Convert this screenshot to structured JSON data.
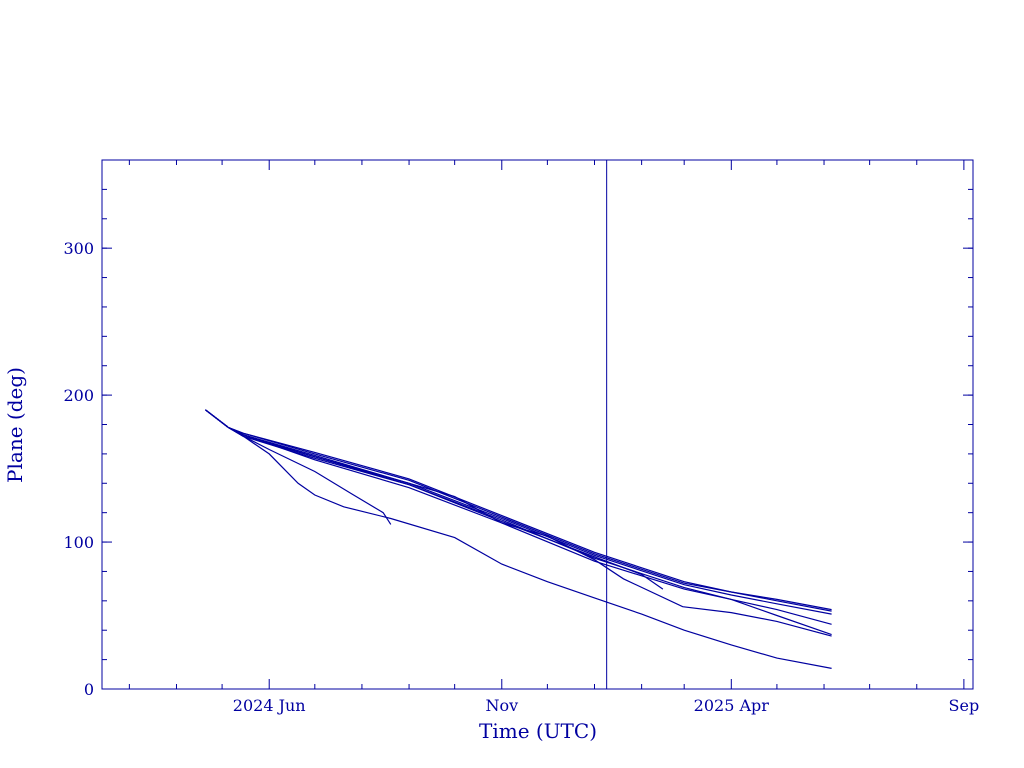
{
  "chart_data": {
    "type": "line",
    "title": "",
    "xlabel": "Time (UTC)",
    "ylabel": "Plane (deg)",
    "xlim": [
      "2024-02-12",
      "2025-09-07"
    ],
    "ylim": [
      0,
      360
    ],
    "x_ticks": [
      {
        "date": "2024-06-01",
        "label": "2024 Jun"
      },
      {
        "date": "2024-11-01",
        "label": "Nov"
      },
      {
        "date": "2025-04-01",
        "label": "2025 Apr"
      },
      {
        "date": "2025-09-01",
        "label": "Sep"
      }
    ],
    "x_minor_ticks": [
      "2024-03-01",
      "2024-04-01",
      "2024-05-01",
      "2024-07-01",
      "2024-08-01",
      "2024-09-01",
      "2024-10-01",
      "2024-12-01",
      "2025-01-01",
      "2025-02-01",
      "2025-03-01",
      "2025-05-01",
      "2025-06-01",
      "2025-07-01",
      "2025-08-01"
    ],
    "y_ticks": [
      0,
      100,
      200,
      300
    ],
    "y_minor_step": 20,
    "vertical_marker": "2025-01-09",
    "grid": false,
    "series": [
      {
        "points": [
          [
            "2024-04-20",
            190
          ],
          [
            "2024-05-05",
            178
          ],
          [
            "2024-05-15",
            174
          ],
          [
            "2024-07-01",
            161
          ],
          [
            "2024-09-01",
            143
          ],
          [
            "2024-11-01",
            118
          ],
          [
            "2025-01-01",
            93
          ],
          [
            "2025-03-01",
            73
          ],
          [
            "2025-04-01",
            66
          ],
          [
            "2025-05-01",
            61
          ],
          [
            "2025-06-06",
            54
          ]
        ]
      },
      {
        "points": [
          [
            "2024-04-20",
            190
          ],
          [
            "2024-05-05",
            178
          ],
          [
            "2024-05-15",
            174
          ],
          [
            "2024-07-01",
            160
          ],
          [
            "2024-09-01",
            142
          ],
          [
            "2024-11-01",
            117
          ],
          [
            "2025-01-01",
            92
          ],
          [
            "2025-03-01",
            72
          ],
          [
            "2025-04-01",
            66
          ],
          [
            "2025-05-01",
            60
          ],
          [
            "2025-06-06",
            53
          ]
        ]
      },
      {
        "points": [
          [
            "2024-04-20",
            190
          ],
          [
            "2024-05-05",
            178
          ],
          [
            "2024-05-15",
            173
          ],
          [
            "2024-07-01",
            159
          ],
          [
            "2024-09-01",
            140
          ],
          [
            "2024-11-01",
            116
          ],
          [
            "2025-01-01",
            91
          ],
          [
            "2025-03-01",
            71
          ],
          [
            "2025-04-01",
            64
          ],
          [
            "2025-05-01",
            58
          ],
          [
            "2025-06-06",
            51
          ]
        ]
      },
      {
        "points": [
          [
            "2024-04-20",
            190
          ],
          [
            "2024-05-05",
            178
          ],
          [
            "2024-05-15",
            173
          ],
          [
            "2024-07-01",
            158
          ],
          [
            "2024-09-01",
            139
          ],
          [
            "2024-11-01",
            115
          ],
          [
            "2025-01-01",
            89
          ],
          [
            "2025-03-01",
            69
          ],
          [
            "2025-04-01",
            61
          ],
          [
            "2025-05-01",
            54
          ],
          [
            "2025-06-06",
            44
          ]
        ]
      },
      {
        "points": [
          [
            "2024-04-20",
            190
          ],
          [
            "2024-05-05",
            178
          ],
          [
            "2024-05-15",
            173
          ],
          [
            "2024-07-01",
            156
          ],
          [
            "2024-09-01",
            137
          ],
          [
            "2024-11-01",
            113
          ],
          [
            "2025-01-01",
            87
          ],
          [
            "2025-03-01",
            68
          ],
          [
            "2025-04-01",
            61
          ],
          [
            "2025-05-01",
            50
          ],
          [
            "2025-06-06",
            37
          ]
        ]
      },
      {
        "points": [
          [
            "2024-04-20",
            190
          ],
          [
            "2024-05-05",
            178
          ],
          [
            "2024-05-15",
            172
          ],
          [
            "2024-07-01",
            158
          ],
          [
            "2024-09-01",
            140
          ],
          [
            "2024-10-01",
            131
          ],
          [
            "2024-11-01",
            113
          ],
          [
            "2024-12-01",
            104
          ],
          [
            "2025-01-01",
            88
          ],
          [
            "2025-01-20",
            75
          ],
          [
            "2025-02-28",
            56
          ],
          [
            "2025-04-01",
            52
          ],
          [
            "2025-05-01",
            46
          ],
          [
            "2025-06-06",
            36
          ]
        ]
      },
      {
        "points": [
          [
            "2024-04-20",
            190
          ],
          [
            "2024-05-05",
            178
          ],
          [
            "2024-05-15",
            172
          ],
          [
            "2024-07-01",
            157
          ],
          [
            "2024-09-01",
            139
          ],
          [
            "2024-11-01",
            114
          ],
          [
            "2025-01-01",
            90
          ],
          [
            "2025-02-01",
            78
          ],
          [
            "2025-02-15",
            68
          ]
        ]
      },
      {
        "points": [
          [
            "2024-04-20",
            190
          ],
          [
            "2024-05-05",
            178
          ],
          [
            "2024-05-15",
            172
          ],
          [
            "2024-06-01",
            163
          ],
          [
            "2024-07-01",
            148
          ],
          [
            "2024-07-25",
            133
          ],
          [
            "2024-08-15",
            120
          ],
          [
            "2024-08-20",
            112
          ]
        ]
      },
      {
        "points": [
          [
            "2024-04-20",
            190
          ],
          [
            "2024-05-05",
            178
          ],
          [
            "2024-05-15",
            172
          ],
          [
            "2024-06-01",
            160
          ],
          [
            "2024-06-20",
            140
          ],
          [
            "2024-07-01",
            132
          ],
          [
            "2024-07-20",
            124
          ],
          [
            "2024-08-20",
            116
          ],
          [
            "2024-10-01",
            103
          ],
          [
            "2024-11-01",
            85
          ],
          [
            "2024-12-01",
            73
          ],
          [
            "2025-01-01",
            62
          ],
          [
            "2025-02-01",
            51
          ],
          [
            "2025-03-01",
            40
          ],
          [
            "2025-04-01",
            30
          ],
          [
            "2025-05-01",
            21
          ],
          [
            "2025-06-06",
            14
          ]
        ]
      }
    ]
  }
}
